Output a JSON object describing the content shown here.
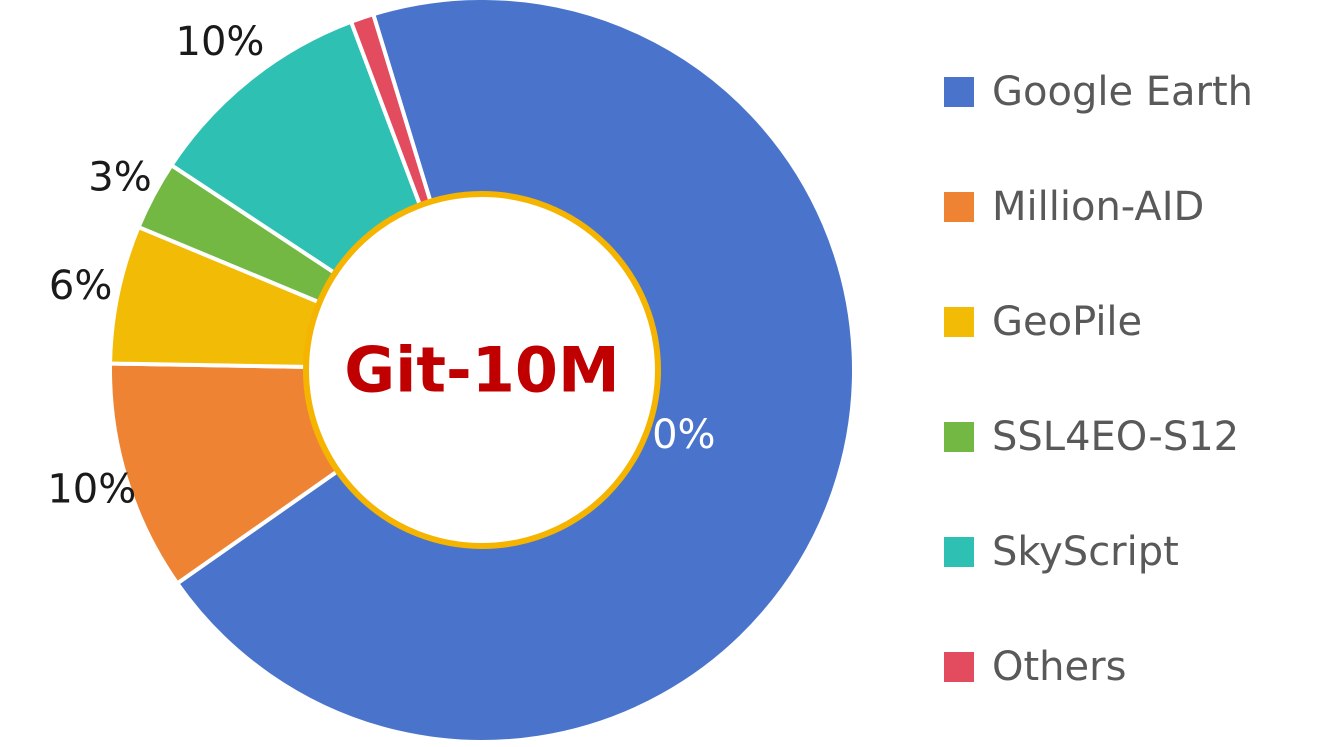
{
  "chart_data": {
    "type": "pie",
    "variant": "donut",
    "center_title": "Git-10M",
    "categories": [
      "Google Earth",
      "Million-AID",
      "GeoPile",
      "SSL4EO-S12",
      "SkyScript",
      "Others"
    ],
    "values": [
      70,
      10,
      6,
      3,
      10,
      1
    ],
    "value_labels": [
      "70%",
      "10%",
      "6%",
      "3%",
      "10%",
      "1%"
    ],
    "unit": "%",
    "colors": [
      "#4a74cb",
      "#ee8433",
      "#f2bb05",
      "#72b843",
      "#2ec0b2",
      "#e34b5f"
    ],
    "center_ring_color": "#f5b400",
    "center_title_color": "#c00000",
    "legend_position": "right",
    "title": "",
    "xlabel": "",
    "ylabel": ""
  }
}
